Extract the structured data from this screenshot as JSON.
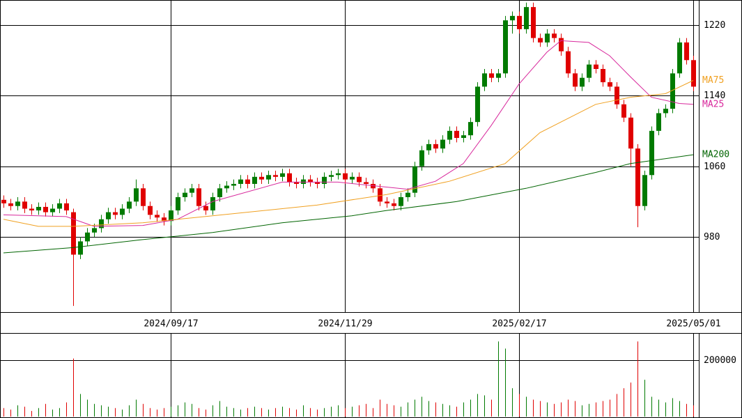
{
  "chart_data": [
    {
      "type": "candlestick",
      "xlim": [
        -0.5,
        99.5
      ],
      "xticks": [
        {
          "value": 24,
          "label": "2024/09/17"
        },
        {
          "value": 49,
          "label": "2024/11/29"
        },
        {
          "value": 74,
          "label": "2025/02/17"
        },
        {
          "value": 99,
          "label": "2025/05/01"
        }
      ],
      "ylim": [
        895,
        1248
      ],
      "yticks": [
        980,
        1060,
        1140,
        1220
      ],
      "grid": true,
      "up_color": "#007a00",
      "down_color": "#e00000",
      "open": [
        1022,
        1018,
        1015,
        1020,
        1012,
        1010,
        1014,
        1008,
        1012,
        1018,
        1008,
        960,
        975,
        985,
        990,
        1000,
        1008,
        1005,
        1012,
        1020,
        1035,
        1015,
        1005,
        1002,
        998,
        1010,
        1025,
        1030,
        1035,
        1015,
        1010,
        1025,
        1035,
        1038,
        1040,
        1045,
        1040,
        1048,
        1045,
        1050,
        1048,
        1052,
        1042,
        1040,
        1045,
        1042,
        1040,
        1048,
        1050,
        1052,
        1045,
        1048,
        1042,
        1040,
        1035,
        1020,
        1018,
        1015,
        1025,
        1030,
        1060,
        1078,
        1085,
        1080,
        1090,
        1100,
        1092,
        1095,
        1110,
        1150,
        1165,
        1160,
        1165,
        1225,
        1230,
        1215,
        1240,
        1205,
        1200,
        1210,
        1205,
        1190,
        1165,
        1150,
        1160,
        1175,
        1170,
        1155,
        1150,
        1130,
        1115,
        1080,
        1015,
        1050,
        1100,
        1120,
        1125,
        1165,
        1200,
        1180
      ],
      "high": [
        1027,
        1023,
        1025,
        1025,
        1017,
        1019,
        1019,
        1017,
        1023,
        1023,
        1012,
        980,
        990,
        995,
        1005,
        1013,
        1013,
        1017,
        1025,
        1045,
        1040,
        1020,
        1010,
        1007,
        1015,
        1030,
        1035,
        1040,
        1040,
        1020,
        1030,
        1040,
        1043,
        1045,
        1050,
        1050,
        1053,
        1053,
        1055,
        1055,
        1057,
        1057,
        1047,
        1050,
        1050,
        1047,
        1053,
        1055,
        1057,
        1057,
        1053,
        1053,
        1047,
        1045,
        1040,
        1025,
        1023,
        1030,
        1035,
        1065,
        1083,
        1090,
        1090,
        1095,
        1105,
        1105,
        1100,
        1115,
        1155,
        1170,
        1170,
        1170,
        1230,
        1235,
        1235,
        1245,
        1245,
        1210,
        1215,
        1215,
        1210,
        1195,
        1170,
        1165,
        1180,
        1180,
        1175,
        1160,
        1155,
        1135,
        1120,
        1085,
        1055,
        1105,
        1125,
        1130,
        1170,
        1205,
        1205,
        1185
      ],
      "low": [
        1013,
        1010,
        1010,
        1007,
        1005,
        1005,
        1003,
        1003,
        1007,
        1005,
        902,
        955,
        970,
        980,
        985,
        995,
        1000,
        1000,
        1007,
        1015,
        1010,
        1000,
        997,
        993,
        993,
        1005,
        1020,
        1025,
        1010,
        1005,
        1005,
        1020,
        1030,
        1033,
        1035,
        1035,
        1035,
        1040,
        1040,
        1043,
        1043,
        1037,
        1035,
        1035,
        1037,
        1035,
        1035,
        1043,
        1045,
        1040,
        1040,
        1037,
        1035,
        1030,
        1015,
        1013,
        1010,
        1010,
        1020,
        1025,
        1055,
        1073,
        1075,
        1075,
        1085,
        1087,
        1087,
        1090,
        1105,
        1145,
        1155,
        1155,
        1160,
        1210,
        1210,
        1210,
        1200,
        1195,
        1195,
        1200,
        1185,
        1160,
        1145,
        1145,
        1155,
        1165,
        1150,
        1145,
        1125,
        1110,
        1060,
        991,
        1010,
        1045,
        1095,
        1115,
        1120,
        1160,
        1175,
        1145
      ],
      "close": [
        1018,
        1015,
        1020,
        1012,
        1010,
        1014,
        1008,
        1012,
        1018,
        1010,
        960,
        975,
        985,
        990,
        1000,
        1008,
        1005,
        1012,
        1020,
        1035,
        1015,
        1005,
        1002,
        998,
        1010,
        1025,
        1030,
        1035,
        1015,
        1010,
        1025,
        1035,
        1038,
        1040,
        1045,
        1040,
        1048,
        1045,
        1050,
        1048,
        1052,
        1042,
        1040,
        1045,
        1042,
        1040,
        1048,
        1050,
        1052,
        1045,
        1048,
        1042,
        1040,
        1035,
        1020,
        1018,
        1015,
        1025,
        1030,
        1060,
        1078,
        1085,
        1080,
        1090,
        1100,
        1092,
        1095,
        1110,
        1150,
        1165,
        1160,
        1165,
        1225,
        1230,
        1215,
        1240,
        1205,
        1200,
        1210,
        1205,
        1190,
        1165,
        1150,
        1160,
        1175,
        1170,
        1155,
        1150,
        1130,
        1115,
        1080,
        1015,
        1050,
        1100,
        1120,
        1125,
        1165,
        1200,
        1180,
        1150
      ],
      "series": [
        {
          "name": "MA25",
          "color": "#d8289c",
          "x": [
            0,
            9,
            13,
            20,
            25,
            30,
            40,
            48,
            58,
            62,
            66,
            70,
            74,
            78,
            80,
            84,
            87,
            90,
            93,
            97,
            99
          ],
          "values": [
            1005,
            1003,
            992,
            993,
            1000,
            1020,
            1042,
            1042,
            1034,
            1043,
            1063,
            1106,
            1153,
            1189,
            1202,
            1200,
            1185,
            1161,
            1138,
            1131,
            1130
          ]
        },
        {
          "name": "MA75",
          "color": "#f0a020",
          "x": [
            0,
            5,
            10,
            20,
            30,
            45,
            55,
            64,
            72,
            77,
            85,
            90,
            95,
            99
          ],
          "values": [
            1000,
            992,
            992,
            996,
            1004,
            1016,
            1028,
            1043,
            1063,
            1098,
            1130,
            1138,
            1142,
            1157
          ]
        },
        {
          "name": "MA200",
          "color": "#006400",
          "x": [
            0,
            10,
            20,
            30,
            40,
            50,
            55,
            65,
            75,
            85,
            90,
            99
          ],
          "values": [
            962,
            968,
            977,
            985,
            996,
            1004,
            1010,
            1020,
            1035,
            1053,
            1063,
            1073
          ]
        }
      ]
    },
    {
      "type": "bar",
      "ylim": [
        0,
        290000
      ],
      "yticks": [
        200000
      ],
      "grid": true,
      "values": [
        30000,
        25000,
        40000,
        35000,
        20000,
        30000,
        45000,
        25000,
        30000,
        50000,
        205000,
        80000,
        60000,
        45000,
        40000,
        35000,
        30000,
        25000,
        40000,
        60000,
        45000,
        30000,
        25000,
        30000,
        35000,
        40000,
        50000,
        45000,
        30000,
        25000,
        40000,
        55000,
        35000,
        30000,
        25000,
        30000,
        35000,
        30000,
        25000,
        30000,
        35000,
        30000,
        25000,
        40000,
        30000,
        25000,
        30000,
        35000,
        40000,
        30000,
        35000,
        40000,
        45000,
        30000,
        60000,
        45000,
        40000,
        35000,
        50000,
        60000,
        70000,
        55000,
        50000,
        45000,
        40000,
        35000,
        50000,
        60000,
        80000,
        75000,
        60000,
        265000,
        240000,
        100000,
        80000,
        70000,
        60000,
        55000,
        50000,
        45000,
        50000,
        60000,
        55000,
        40000,
        45000,
        50000,
        55000,
        60000,
        80000,
        100000,
        120000,
        265000,
        130000,
        70000,
        60000,
        50000,
        65000,
        55000,
        45000,
        40000
      ]
    }
  ]
}
